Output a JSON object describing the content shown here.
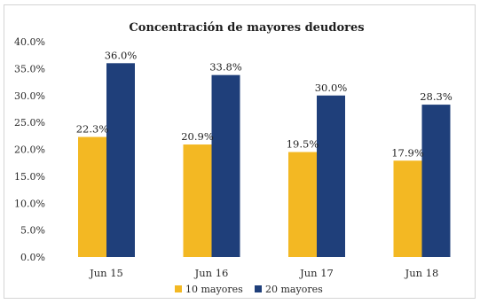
{
  "chart_data": {
    "type": "bar",
    "title": "Concentración de mayores deudores",
    "categories": [
      "Jun 15",
      "Jun 16",
      "Jun 17",
      "Jun 18"
    ],
    "series": [
      {
        "name": "10 mayores",
        "color": "#f3b823",
        "values": [
          22.3,
          20.9,
          19.5,
          17.9
        ],
        "labels": [
          "22.3%",
          "20.9%",
          "19.5%",
          "17.9%"
        ]
      },
      {
        "name": "20 mayores",
        "color": "#1f3f7a",
        "values": [
          36.0,
          33.8,
          30.0,
          28.3
        ],
        "labels": [
          "36.0%",
          "33.8%",
          "30.0%",
          "28.3%"
        ]
      }
    ],
    "yticks": [
      "0.0%",
      "5.0%",
      "10.0%",
      "15.0%",
      "20.0%",
      "25.0%",
      "30.0%",
      "35.0%",
      "40.0%"
    ],
    "ylim": [
      0,
      40
    ],
    "grid": false,
    "legend_position": "bottom"
  }
}
